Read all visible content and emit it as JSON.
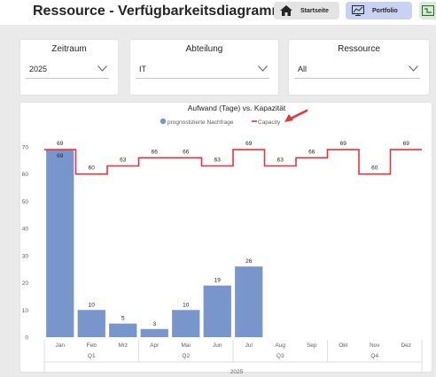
{
  "header": {
    "title": "Ressource - Verfügbarkeitsdiagramm",
    "nav": {
      "home_label": "Startseite",
      "portfolio_label": "Portfolio"
    },
    "colors": {
      "home_bg": "#e4e4e4",
      "portfolio_bg": "#c8d3f4",
      "next_bg": "#d8ead8"
    }
  },
  "filters": {
    "period": {
      "label": "Zeitraum",
      "value": "2025"
    },
    "department": {
      "label": "Abteilung",
      "value": "IT"
    },
    "resource": {
      "label": "Ressource",
      "value": "All"
    }
  },
  "icons": [
    "home-icon",
    "portfolio-icon",
    "next-page-icon",
    "chevron-down-icon",
    "arrow-annotation-icon"
  ],
  "chart_data": {
    "type": "bar",
    "title": "Aufwand (Tage) vs. Kapazität",
    "categories": [
      "Jan",
      "Feb",
      "Mrz",
      "Apr",
      "Mai",
      "Jun",
      "Jul",
      "Aug",
      "Sep",
      "Okt",
      "Nov",
      "Dez"
    ],
    "quarters": [
      {
        "label": "Q1",
        "months": 3
      },
      {
        "label": "Q2",
        "months": 3
      },
      {
        "label": "Q3",
        "months": 3
      },
      {
        "label": "Q4",
        "months": 3
      }
    ],
    "year_label": "2025",
    "series": [
      {
        "name": "prognostizierte Nachfrage",
        "type": "bar",
        "color": "#7895cc",
        "values": [
          69,
          10,
          5,
          3,
          10,
          19,
          26,
          null,
          null,
          null,
          null,
          null
        ]
      },
      {
        "name": "Capacity",
        "type": "step-line",
        "color": "#e8323c",
        "values": [
          69,
          60,
          63,
          66,
          66,
          63,
          69,
          63,
          66,
          69,
          60,
          69
        ]
      }
    ],
    "ylim": [
      0,
      70
    ],
    "yticks": [
      0,
      10,
      20,
      30,
      40,
      50,
      60,
      70
    ],
    "xlabel": "",
    "ylabel": "",
    "legend_position": "top-center",
    "grid": false,
    "annotation": {
      "type": "arrow",
      "color": "#e8323c",
      "points_to": "Capacity"
    }
  }
}
